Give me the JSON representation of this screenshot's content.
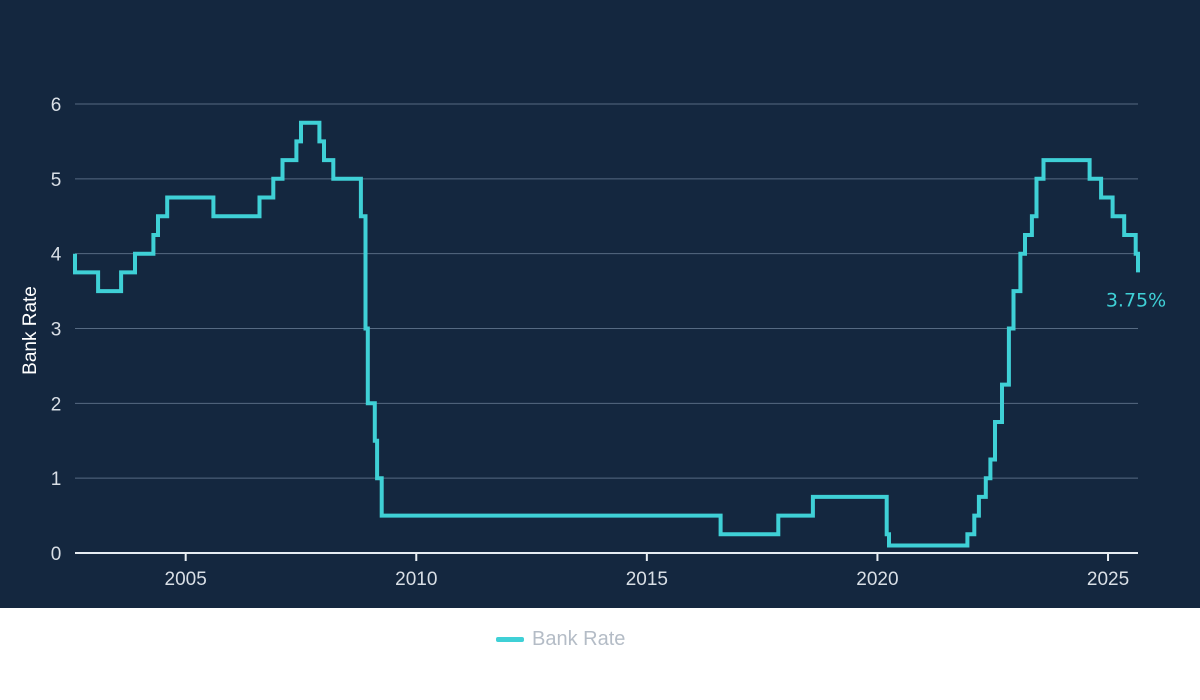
{
  "chart_data": {
    "type": "line",
    "step": true,
    "title": "",
    "xlabel": "",
    "ylabel": "Bank Rate",
    "xlim": [
      2002.6,
      2025.65
    ],
    "ylim": [
      0,
      6
    ],
    "xticks": [
      "2005",
      "2010",
      "2015",
      "2020",
      "2025"
    ],
    "yticks": [
      "0",
      "1",
      "2",
      "3",
      "4",
      "5",
      "6"
    ],
    "grid": true,
    "legend": "bottom-center",
    "end_label": "3.75%",
    "series": [
      {
        "name": "Bank Rate",
        "color": "#3fd0d6",
        "points": [
          [
            2002.6,
            4.0
          ],
          [
            2002.6,
            3.75
          ],
          [
            2003.1,
            3.5
          ],
          [
            2003.6,
            3.75
          ],
          [
            2003.9,
            4.0
          ],
          [
            2004.3,
            4.25
          ],
          [
            2004.4,
            4.5
          ],
          [
            2004.6,
            4.75
          ],
          [
            2005.6,
            4.5
          ],
          [
            2006.6,
            4.75
          ],
          [
            2006.9,
            5.0
          ],
          [
            2007.1,
            5.25
          ],
          [
            2007.4,
            5.5
          ],
          [
            2007.5,
            5.75
          ],
          [
            2007.9,
            5.5
          ],
          [
            2008.0,
            5.25
          ],
          [
            2008.2,
            5.0
          ],
          [
            2008.8,
            4.5
          ],
          [
            2008.9,
            3.0
          ],
          [
            2008.95,
            2.0
          ],
          [
            2009.1,
            1.5
          ],
          [
            2009.15,
            1.0
          ],
          [
            2009.25,
            0.5
          ],
          [
            2016.6,
            0.25
          ],
          [
            2017.85,
            0.5
          ],
          [
            2018.6,
            0.75
          ],
          [
            2020.2,
            0.25
          ],
          [
            2020.25,
            0.1
          ],
          [
            2021.95,
            0.25
          ],
          [
            2022.1,
            0.5
          ],
          [
            2022.2,
            0.75
          ],
          [
            2022.35,
            1.0
          ],
          [
            2022.45,
            1.25
          ],
          [
            2022.55,
            1.75
          ],
          [
            2022.7,
            2.25
          ],
          [
            2022.85,
            3.0
          ],
          [
            2022.95,
            3.5
          ],
          [
            2023.1,
            4.0
          ],
          [
            2023.2,
            4.25
          ],
          [
            2023.35,
            4.5
          ],
          [
            2023.45,
            5.0
          ],
          [
            2023.6,
            5.25
          ],
          [
            2024.6,
            5.0
          ],
          [
            2024.85,
            4.75
          ],
          [
            2025.1,
            4.5
          ],
          [
            2025.35,
            4.25
          ],
          [
            2025.6,
            4.0
          ],
          [
            2025.65,
            3.75
          ]
        ]
      }
    ]
  }
}
